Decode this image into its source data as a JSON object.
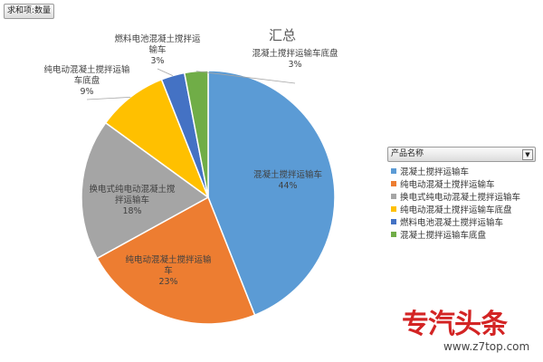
{
  "pivot_field_button": "求和项:数量",
  "chart_data": {
    "type": "pie",
    "title": "汇总",
    "slices": [
      {
        "label": "混凝土搅拌运输车",
        "value": 44,
        "pct": "44%",
        "color": "#5b9bd5"
      },
      {
        "label": "纯电动混凝土搅拌运输车",
        "value": 23,
        "pct": "23%",
        "color": "#ed7d31"
      },
      {
        "label": "换电式纯电动混凝土搅拌运输车",
        "value": 18,
        "pct": "18%",
        "color": "#a5a5a5"
      },
      {
        "label": "纯电动混凝土搅拌运输车底盘",
        "value": 9,
        "pct": "9%",
        "color": "#ffc000"
      },
      {
        "label": "燃料电池混凝土搅拌运输车",
        "value": 3,
        "pct": "3%",
        "color": "#4472c4"
      },
      {
        "label": "混凝土搅拌运输车底盘",
        "value": 3,
        "pct": "3%",
        "color": "#70ad47"
      }
    ],
    "data_label_lines": [
      [
        "混凝土搅拌运输车"
      ],
      [
        "纯电动混凝土搅拌运输",
        "车"
      ],
      [
        "换电式纯电动混凝土搅",
        "拌运输车"
      ],
      [
        "纯电动混凝土搅拌运输",
        "车底盘"
      ],
      [
        "燃料电池混凝土搅拌运",
        "输车"
      ],
      [
        "混凝土搅拌运输车底盘"
      ]
    ],
    "legend": {
      "title": "产品名称",
      "placement": "right"
    }
  },
  "watermark": {
    "text": "专汽头条",
    "url": "www.z7top.com"
  }
}
